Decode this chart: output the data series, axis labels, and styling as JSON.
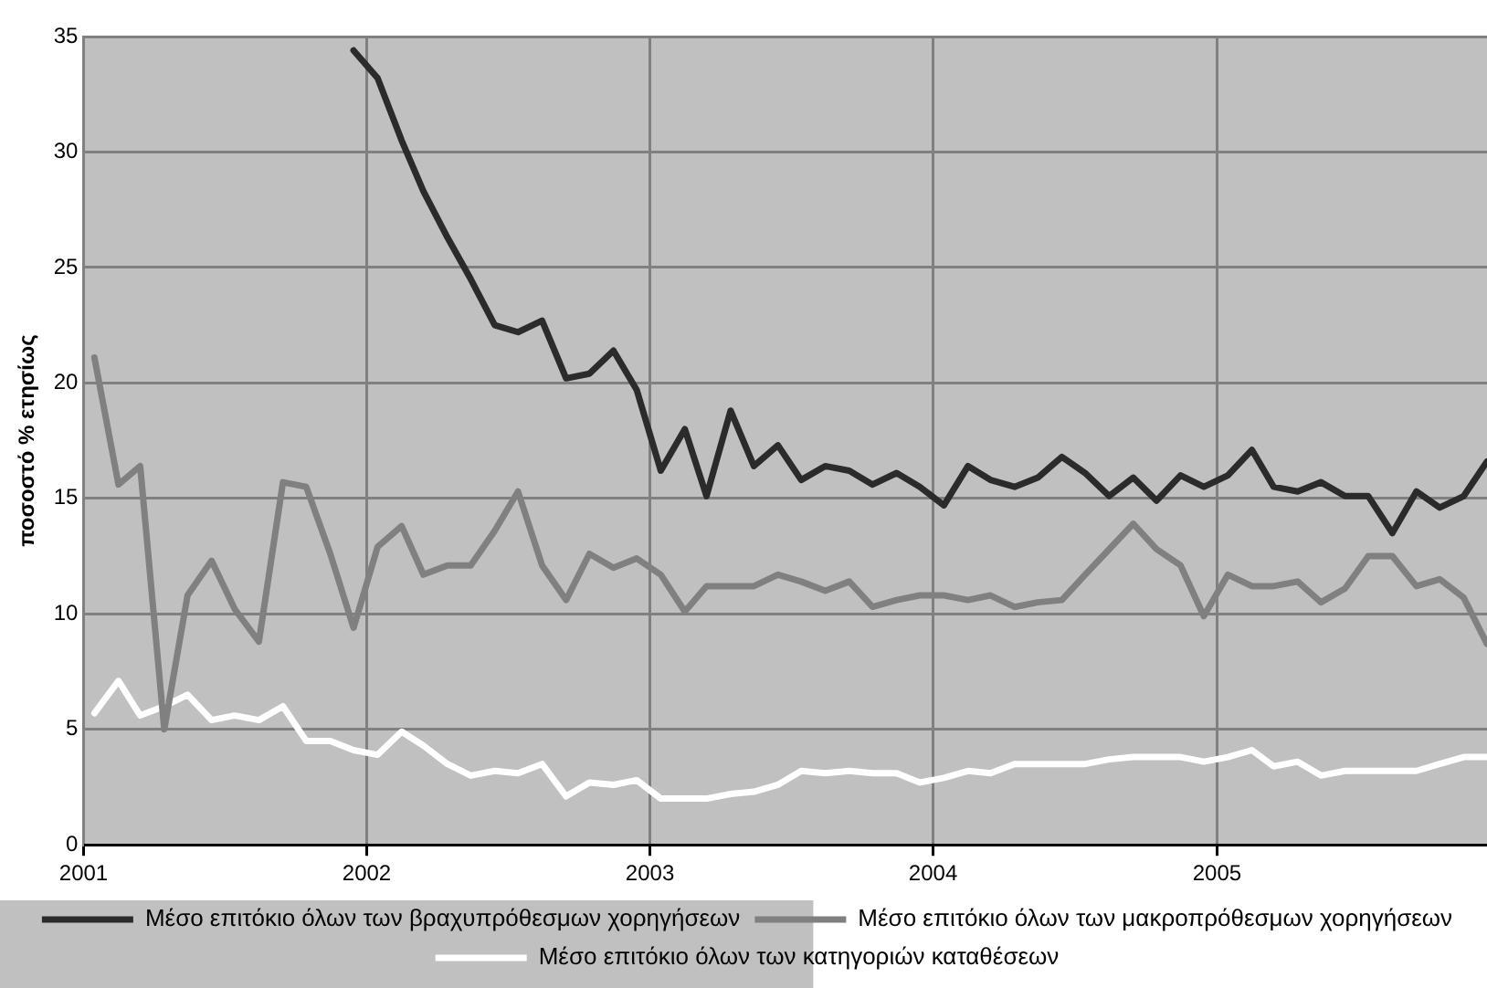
{
  "chart_data": {
    "type": "line",
    "ylabel": "ποσοστό % ετησίως",
    "x": [
      "2001-01-15",
      "2001-02-15",
      "2001-03-15",
      "2001-04-15",
      "2001-05-15",
      "2001-06-15",
      "2001-07-15",
      "2001-08-15",
      "2001-09-15",
      "2001-10-15",
      "2001-11-15",
      "2001-12-15",
      "2002-01-15",
      "2002-02-15",
      "2002-03-15",
      "2002-04-15",
      "2002-05-15",
      "2002-06-15",
      "2002-07-15",
      "2002-08-15",
      "2002-09-15",
      "2002-10-15",
      "2002-11-15",
      "2002-12-15",
      "2003-01-15",
      "2003-02-15",
      "2003-03-15",
      "2003-04-15",
      "2003-05-15",
      "2003-06-15",
      "2003-07-15",
      "2003-08-15",
      "2003-09-15",
      "2003-10-15",
      "2003-11-15",
      "2003-12-15",
      "2004-01-15",
      "2004-02-15",
      "2004-03-15",
      "2004-04-15",
      "2004-05-15",
      "2004-06-15",
      "2004-07-15",
      "2004-08-15",
      "2004-09-15",
      "2004-10-15",
      "2004-11-15",
      "2004-12-15",
      "2005-01-15",
      "2005-02-15",
      "2005-03-15",
      "2005-04-15",
      "2005-05-15",
      "2005-06-15",
      "2005-07-15",
      "2005-08-15",
      "2005-09-15",
      "2005-10-15",
      "2005-11-15",
      "2005-12-15"
    ],
    "series": [
      {
        "name": "Μέσο επιτόκιο όλων των βραχυπρόθεσμων χορηγήσεων",
        "color": "#2b2b2b",
        "values": [
          null,
          null,
          null,
          null,
          null,
          null,
          null,
          null,
          null,
          null,
          null,
          34.4,
          33.2,
          30.5,
          28.3,
          26.3,
          24.5,
          22.5,
          22.2,
          22.7,
          20.2,
          20.4,
          21.4,
          19.7,
          16.2,
          18.0,
          15.1,
          18.8,
          16.4,
          17.3,
          15.8,
          16.4,
          16.2,
          15.6,
          16.1,
          15.5,
          14.7,
          16.4,
          15.8,
          15.5,
          15.9,
          16.8,
          16.1,
          15.1,
          15.9,
          14.9,
          16.0,
          15.5,
          16.0,
          17.1,
          15.5,
          15.3,
          15.7,
          15.1,
          15.1,
          13.5,
          15.3,
          14.6,
          15.1,
          16.6
        ]
      },
      {
        "name": "Μέσο επιτόκιο όλων των μακροπρόθεσμων χορηγήσεων",
        "color": "#808080",
        "values": [
          21.1,
          15.6,
          16.4,
          5.0,
          10.8,
          12.3,
          10.2,
          8.8,
          15.7,
          15.5,
          12.6,
          9.4,
          12.9,
          13.8,
          11.7,
          12.1,
          12.1,
          13.6,
          15.3,
          12.1,
          10.6,
          12.6,
          12.0,
          12.4,
          11.7,
          10.1,
          11.2,
          11.2,
          11.2,
          11.7,
          11.4,
          11.0,
          11.4,
          10.3,
          10.6,
          10.8,
          10.8,
          10.6,
          10.8,
          10.3,
          10.5,
          10.6,
          11.7,
          12.8,
          13.9,
          12.8,
          12.1,
          9.9,
          11.7,
          11.2,
          11.2,
          11.4,
          10.5,
          11.1,
          12.5,
          12.5,
          11.2,
          11.5,
          10.7,
          8.7
        ]
      },
      {
        "name": "Μέσο επιτόκιο όλων των κατηγοριών καταθέσεων",
        "color": "#ffffff",
        "values": [
          5.7,
          7.1,
          5.6,
          6.0,
          6.5,
          5.4,
          5.6,
          5.4,
          6.0,
          4.5,
          4.5,
          4.1,
          3.9,
          4.9,
          4.3,
          3.5,
          3.0,
          3.2,
          3.1,
          3.5,
          2.1,
          2.7,
          2.6,
          2.8,
          2.0,
          2.0,
          2.0,
          2.2,
          2.3,
          2.6,
          3.2,
          3.1,
          3.2,
          3.1,
          3.1,
          2.7,
          2.9,
          3.2,
          3.1,
          3.5,
          3.5,
          3.5,
          3.5,
          3.7,
          3.8,
          3.8,
          3.8,
          3.6,
          3.8,
          4.1,
          3.4,
          3.6,
          3.0,
          3.2,
          3.2,
          3.2,
          3.2,
          3.5,
          3.8,
          3.8
        ]
      }
    ],
    "xlim": [
      "2001-01-01",
      "2005-12-15"
    ],
    "xticks": [
      {
        "value": "2001-01-01",
        "label": "2001"
      },
      {
        "value": "2002-01-01",
        "label": "2002"
      },
      {
        "value": "2003-01-01",
        "label": "2003"
      },
      {
        "value": "2004-01-01",
        "label": "2004"
      },
      {
        "value": "2005-01-01",
        "label": "2005"
      }
    ],
    "ylim": [
      0,
      35
    ],
    "yticks": [
      0,
      5,
      10,
      15,
      20,
      25,
      30,
      35
    ],
    "grid": true,
    "legend": "bottom",
    "marker": "none",
    "line_style": "solid"
  }
}
